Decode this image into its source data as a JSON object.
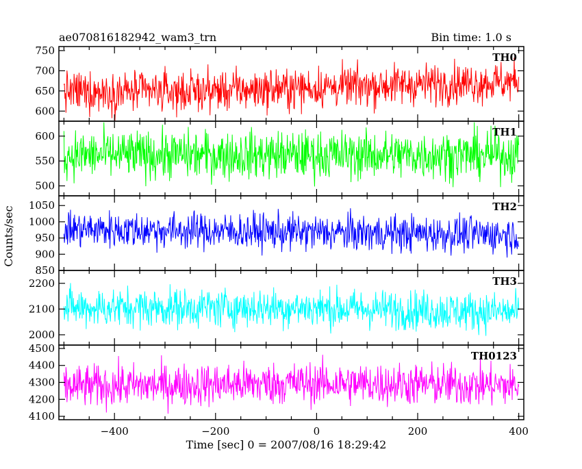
{
  "chart_data": {
    "type": "line",
    "title": "ae070816182942_wam3_trn",
    "subtitle": "Bin time: 1.0 s",
    "xlabel": "Time [sec] 0 = 2007/08/16 18:29:42",
    "ylabel": "Counts/sec",
    "xlim": [
      -510,
      410
    ],
    "x_ticks": [
      -400,
      -200,
      0,
      200,
      400
    ],
    "x_tick_labels": [
      "−400",
      "−200",
      "0",
      "200",
      "400"
    ],
    "x_range": [
      -500,
      400
    ],
    "bin_seconds": 1.0,
    "panels": [
      {
        "name": "TH0",
        "color": "#ff0000",
        "ylim": [
          575,
          760
        ],
        "y_ticks": [
          600,
          650,
          700,
          750
        ],
        "mean": 648,
        "noise": 25,
        "trend": [
          0.0,
          0.0,
          8.0,
          18.0,
          25.0
        ]
      },
      {
        "name": "TH1",
        "color": "#00ff00",
        "ylim": [
          480,
          630
        ],
        "y_ticks": [
          500,
          550,
          600
        ],
        "mean": 562,
        "noise": 24,
        "trend": [
          0.0,
          0.0,
          0.0,
          0.0,
          0.0
        ]
      },
      {
        "name": "TH2",
        "color": "#0000ff",
        "ylim": [
          850,
          1080
        ],
        "y_ticks": [
          850,
          900,
          950,
          1000,
          1050
        ],
        "mean": 970,
        "noise": 28,
        "trend": [
          8.0,
          3.0,
          -2.0,
          -6.0,
          -10.0
        ]
      },
      {
        "name": "TH3",
        "color": "#00ffff",
        "ylim": [
          1960,
          2250
        ],
        "y_ticks": [
          2000,
          2100,
          2200
        ],
        "mean": 2105,
        "noise": 38,
        "trend": [
          0.0,
          0.0,
          0.0,
          -8.0,
          -18.0
        ]
      },
      {
        "name": "TH0123",
        "color": "#ff00ff",
        "ylim": [
          4080,
          4520
        ],
        "y_ticks": [
          4100,
          4200,
          4300,
          4400,
          4500
        ],
        "mean": 4285,
        "noise": 62,
        "trend": [
          -10.0,
          0.0,
          10.0,
          5.0,
          -5.0
        ]
      }
    ]
  }
}
